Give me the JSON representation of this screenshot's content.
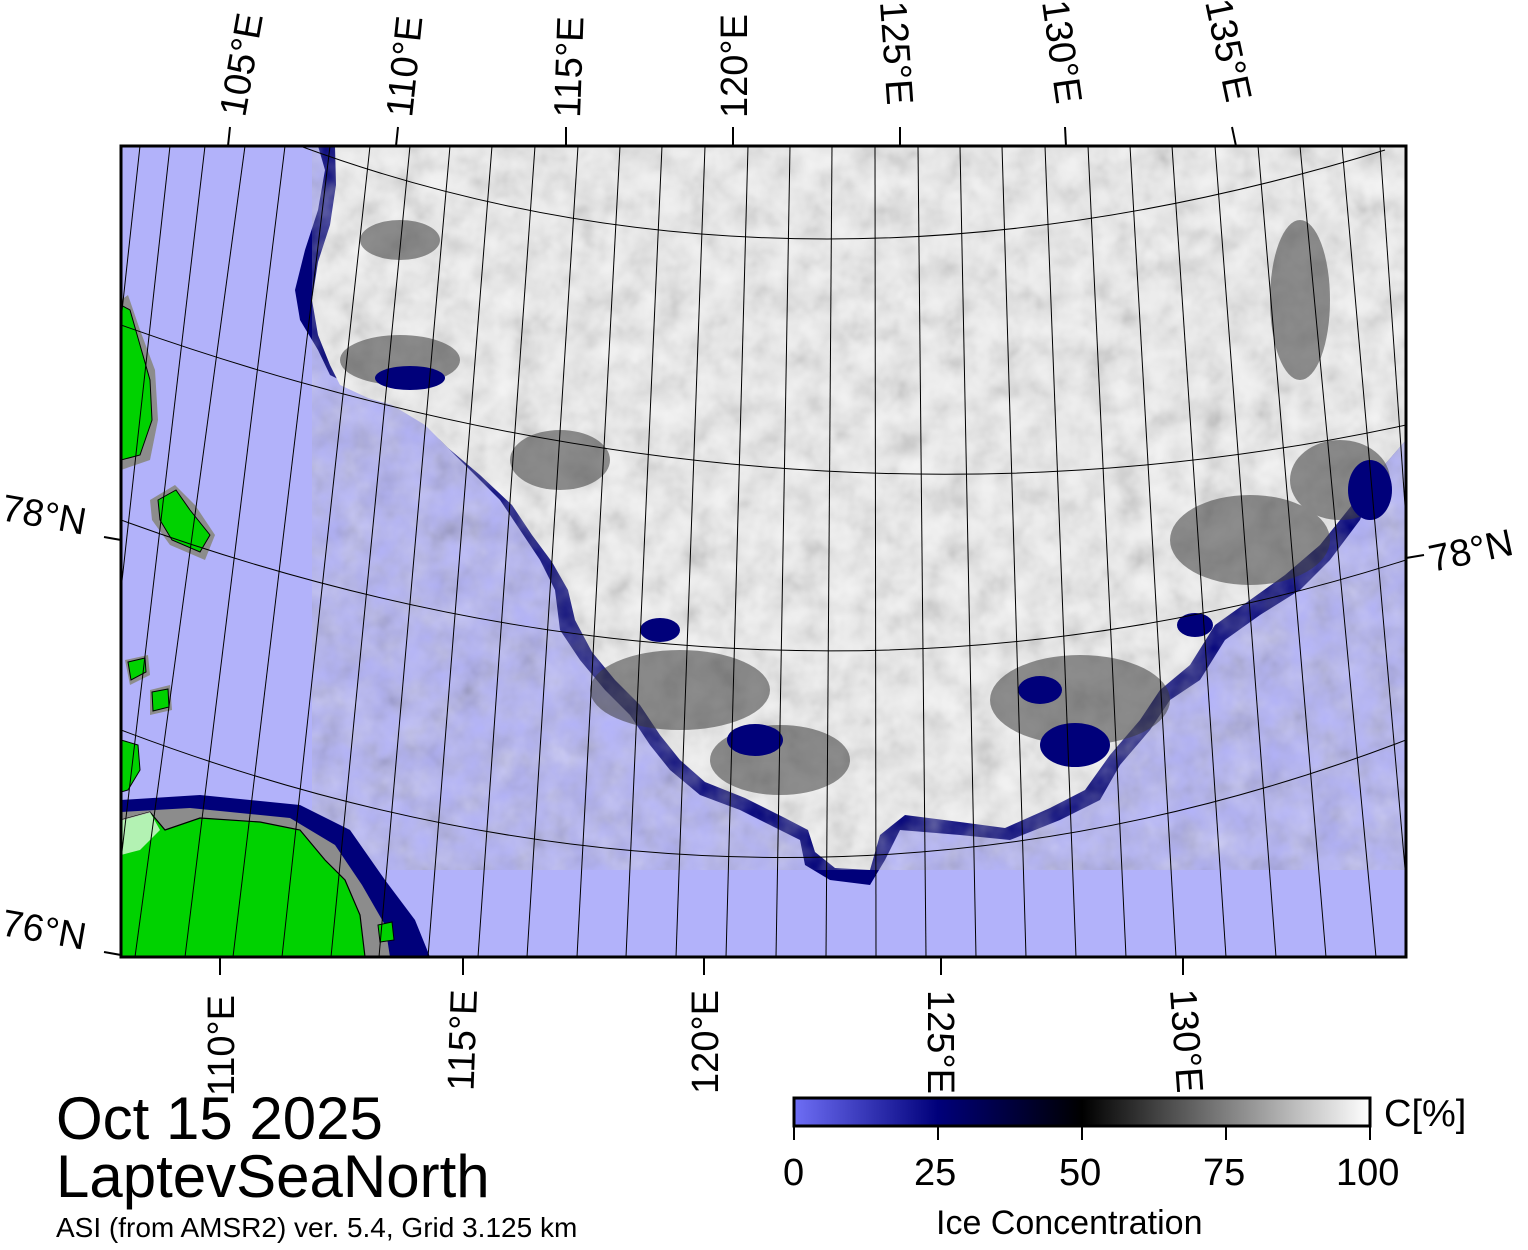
{
  "map": {
    "region": "LaptevSeaNorth",
    "date": "Oct 15 2025",
    "source": "ASI (from AMSR2) ver. 5.4,  Grid 3.125 km",
    "top_lon_labels": [
      "105°E",
      "110°E",
      "115°E",
      "120°E",
      "125°E",
      "130°E",
      "135°E"
    ],
    "bottom_lon_labels": [
      "110°E",
      "115°E",
      "120°E",
      "125°E",
      "130°E"
    ],
    "left_lat_labels": [
      "78°N",
      "76°N"
    ],
    "right_lat_labels": [
      "78°N"
    ],
    "colors": {
      "open_water": "#b2b2fa",
      "land": "#00d200",
      "coast_mask": "#8c8c8c",
      "ice_full": "#ffffff",
      "ice_mid": "#000000",
      "ice_low": "#00007a"
    }
  },
  "colorbar": {
    "title": "Ice Concentration",
    "unit": "C[%]",
    "ticks": [
      "0",
      "25",
      "50",
      "75",
      "100"
    ],
    "stops": [
      {
        "value": 0,
        "color": "#6e6ef5"
      },
      {
        "value": 25,
        "color": "#00007a"
      },
      {
        "value": 50,
        "color": "#000000"
      },
      {
        "value": 75,
        "color": "#7f7f7f"
      },
      {
        "value": 100,
        "color": "#ffffff"
      }
    ]
  }
}
